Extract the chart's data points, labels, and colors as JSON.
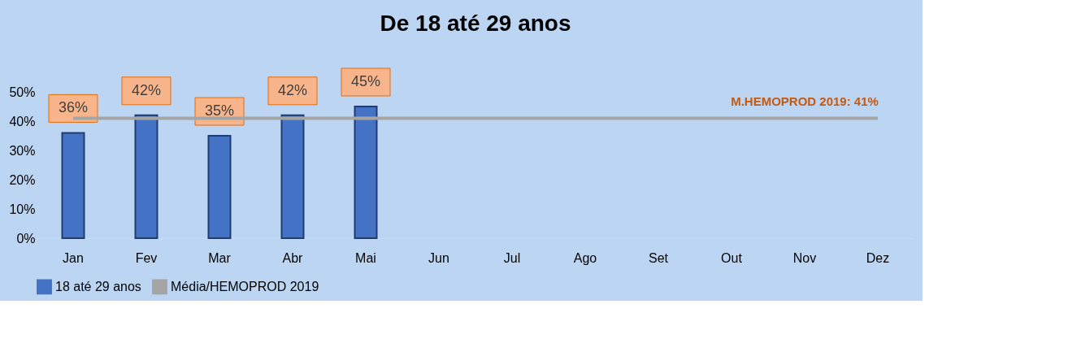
{
  "chart_data": {
    "type": "bar",
    "title": "De 18 até 29 anos",
    "categories": [
      "Jan",
      "Fev",
      "Mar",
      "Abr",
      "Mai",
      "Jun",
      "Jul",
      "Ago",
      "Set",
      "Out",
      "Nov",
      "Dez"
    ],
    "series": [
      {
        "name": "18 até 29 anos",
        "color": "#4472c4",
        "values": [
          36,
          42,
          35,
          42,
          45,
          null,
          null,
          null,
          null,
          null,
          null,
          null
        ],
        "value_labels": [
          "36%",
          "42%",
          "35%",
          "42%",
          "45%",
          null,
          null,
          null,
          null,
          null,
          null,
          null
        ]
      },
      {
        "name": "Média/HEMOPROD 2019",
        "type": "line",
        "color": "#a5a5a5",
        "values": [
          41,
          41,
          41,
          41,
          41,
          41,
          41,
          41,
          41,
          41,
          41,
          41
        ]
      }
    ],
    "ylim": [
      0,
      50
    ],
    "yticks": [
      {
        "value": 0,
        "label": "0%"
      },
      {
        "value": 10,
        "label": "10%"
      },
      {
        "value": 20,
        "label": "20%"
      },
      {
        "value": 30,
        "label": "30%"
      },
      {
        "value": 40,
        "label": "40%"
      },
      {
        "value": 50,
        "label": "50%"
      }
    ],
    "annotations": [
      {
        "text": "M.HEMOPROD 2019: 41%",
        "x": "Nov",
        "y": 41
      }
    ],
    "legend": "bottom",
    "grid": false
  }
}
